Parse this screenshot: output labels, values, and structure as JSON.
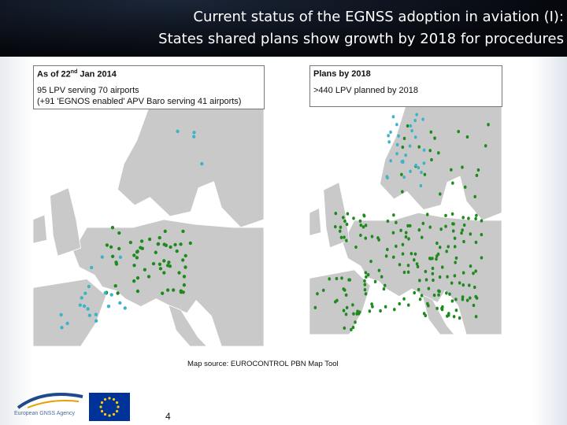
{
  "header": {
    "title_line1": "Current status of the EGNSS adoption in aviation (I):",
    "title_line2": "States shared plans show growth by 2018 for procedures"
  },
  "left_panel": {
    "heading": {
      "pre": "As of 22",
      "sup": "nd",
      "post": " Jan 2014"
    },
    "line1": "95 LPV serving 70 airports",
    "line2": "(+91 'EGNOS enabled' APV Baro serving 41 airports)"
  },
  "right_panel": {
    "heading": "Plans by 2018",
    "line1": ">440 LPV planned by 2018"
  },
  "map_source": "Map source: EUROCONTROL PBN Map Tool",
  "footer": {
    "logo_text": "European GNSS Agency",
    "page_number": "4"
  }
}
